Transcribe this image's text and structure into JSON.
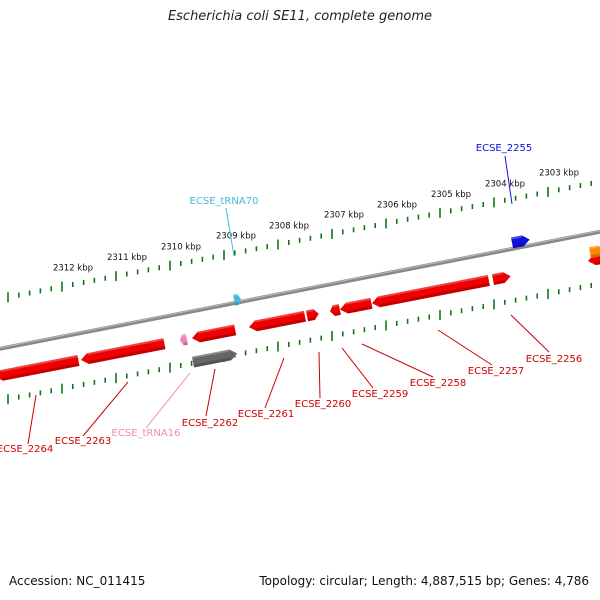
{
  "title": "Escherichia coli SE11, complete genome",
  "footer": {
    "accession": "Accession: NC_011415",
    "summary": "Topology: circular; Length: 4,887,515 bp; Genes: 4,786"
  },
  "colors": {
    "cds": "#ee0000",
    "cds_label": "#cc0000",
    "trna_top": "#44bbdd",
    "trna_bottom": "#ee88bb",
    "rrna_gray": "#666666",
    "blue_feature": "#1111dd",
    "orange_feature": "#ff8800",
    "tick": "#117711",
    "backbone": "#888888"
  },
  "kbp_labels": [
    "2312 kbp",
    "2311 kbp",
    "2310 kbp",
    "2309 kbp",
    "2308 kbp",
    "2307 kbp",
    "2306 kbp",
    "2305 kbp",
    "2304 kbp",
    "2303 kbp"
  ],
  "gene_labels": {
    "top": [
      {
        "text": "ECSE_2255",
        "color": "blue_feature"
      },
      {
        "text": "ECSE_tRNA70",
        "color": "trna_top"
      }
    ],
    "bottom": [
      {
        "text": "ECSE_2256"
      },
      {
        "text": "ECSE_2257"
      },
      {
        "text": "ECSE_2258"
      },
      {
        "text": "ECSE_2259"
      },
      {
        "text": "ECSE_2260"
      },
      {
        "text": "ECSE_2261"
      },
      {
        "text": "ECSE_2262"
      },
      {
        "text": "ECSE_tRNA16",
        "color": "trna_bottom"
      },
      {
        "text": "ECSE_2263"
      },
      {
        "text": "ECSE_2264"
      }
    ]
  }
}
